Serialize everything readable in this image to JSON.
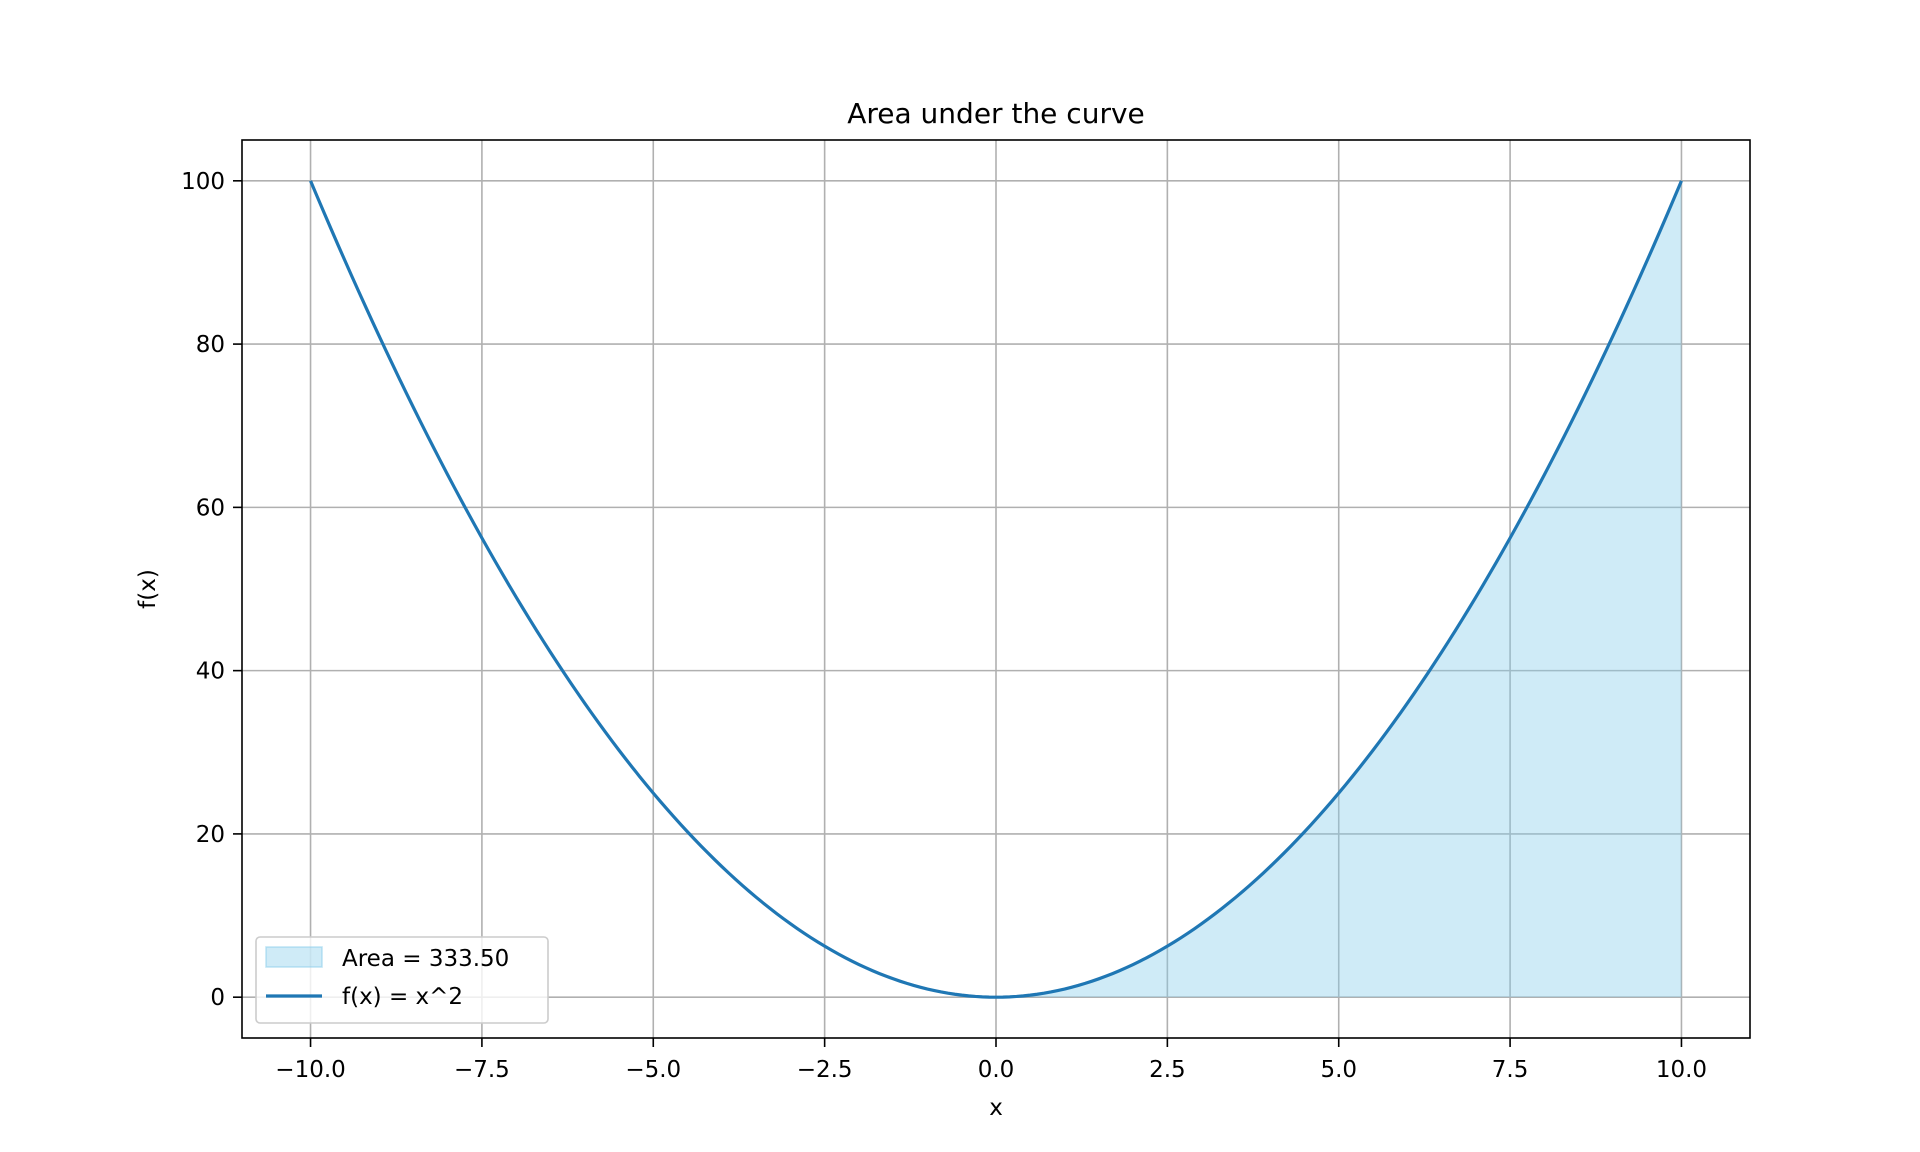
{
  "chart_data": {
    "type": "area",
    "title": "Area under the curve",
    "xlabel": "x",
    "ylabel": "f(x)",
    "xlim": [
      -11,
      11
    ],
    "ylim": [
      -5,
      105
    ],
    "xticks": [
      -10.0,
      -7.5,
      -5.0,
      -2.5,
      0.0,
      2.5,
      5.0,
      7.5,
      10.0
    ],
    "xtick_labels": [
      "−10.0",
      "−7.5",
      "−5.0",
      "−2.5",
      "0.0",
      "2.5",
      "5.0",
      "7.5",
      "10.0"
    ],
    "yticks": [
      0,
      20,
      40,
      60,
      80,
      100
    ],
    "ytick_labels": [
      "0",
      "20",
      "40",
      "60",
      "80",
      "100"
    ],
    "grid": true,
    "legend_position": "lower-left",
    "series": [
      {
        "name": "f(x) = x^2",
        "kind": "line",
        "color": "#1f77b4",
        "x": [
          -10,
          -9,
          -8,
          -7,
          -6,
          -5,
          -4,
          -3,
          -2,
          -1,
          0,
          1,
          2,
          3,
          4,
          5,
          6,
          7,
          8,
          9,
          10
        ],
        "y": [
          100,
          81,
          64,
          49,
          36,
          25,
          16,
          9,
          4,
          1,
          0,
          1,
          4,
          9,
          16,
          25,
          36,
          49,
          64,
          81,
          100
        ]
      },
      {
        "name": "Area = 333.50",
        "kind": "fill",
        "color": "#87ceeb",
        "x": [
          0,
          1,
          2,
          3,
          4,
          5,
          6,
          7,
          8,
          9,
          10
        ],
        "y": [
          0,
          1,
          4,
          9,
          16,
          25,
          36,
          49,
          64,
          81,
          100
        ]
      }
    ],
    "legend": [
      "Area = 333.50",
      "f(x) = x^2"
    ]
  }
}
